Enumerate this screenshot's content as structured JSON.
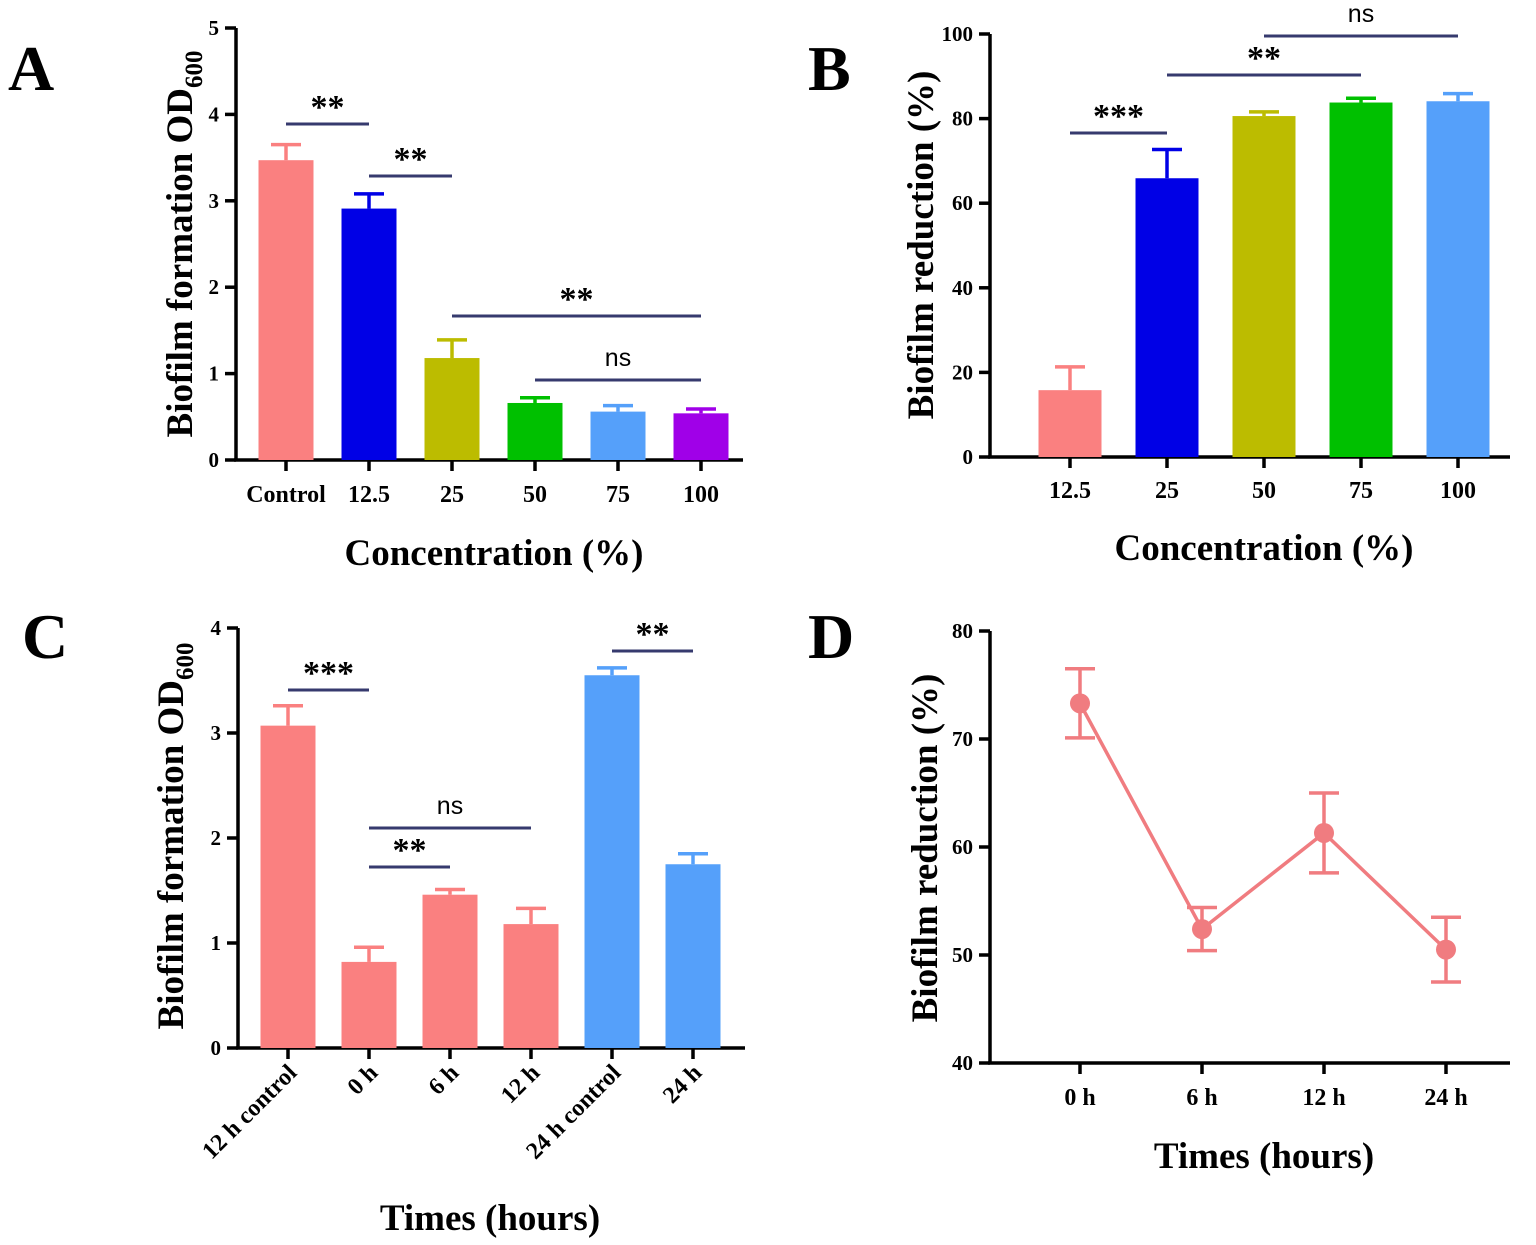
{
  "chart_data": [
    {
      "id": "A",
      "panel_label": "A",
      "type": "bar",
      "ylabel": "Biofilm formation OD",
      "ylabel_sub": "600",
      "xlabel": "Concentration (%)",
      "ylim": [
        0,
        5
      ],
      "yticks": [
        "0",
        "1",
        "2",
        "3",
        "4",
        "5"
      ],
      "categories": [
        "Control",
        "12.5",
        "25",
        "50",
        "75",
        "100"
      ],
      "values": [
        3.47,
        2.91,
        1.18,
        0.66,
        0.56,
        0.54
      ],
      "errors": [
        0.18,
        0.17,
        0.21,
        0.06,
        0.07,
        0.05
      ],
      "colors": [
        "#fa8080",
        "#0000e6",
        "#bcbc00",
        "#00c000",
        "#55a0fa",
        "#a000e8"
      ],
      "significance": [
        {
          "from": 0,
          "to": 1,
          "label": "**"
        },
        {
          "from": 1,
          "to": 2,
          "label": "**"
        },
        {
          "from": 2,
          "to": 5,
          "label": "**"
        },
        {
          "from": 3,
          "to": 5,
          "label": "ns"
        }
      ]
    },
    {
      "id": "B",
      "panel_label": "B",
      "type": "bar",
      "ylabel": "Biofilm reduction (%)",
      "xlabel": "Concentration (%)",
      "ylim": [
        0,
        100
      ],
      "yticks": [
        "0",
        "20",
        "40",
        "60",
        "80",
        "100"
      ],
      "categories": [
        "12.5",
        "25",
        "50",
        "75",
        "100"
      ],
      "values": [
        15.8,
        65.9,
        80.6,
        83.8,
        84.1
      ],
      "errors": [
        5.5,
        6.8,
        1.0,
        1.0,
        1.8
      ],
      "colors": [
        "#fa8080",
        "#0000e6",
        "#bcbc00",
        "#00c000",
        "#55a0fa"
      ],
      "significance": [
        {
          "from": 0,
          "to": 1,
          "label": "***"
        },
        {
          "from": 1,
          "to": 3,
          "label": "**"
        },
        {
          "from": 2,
          "to": 4,
          "label": "ns"
        }
      ]
    },
    {
      "id": "C",
      "panel_label": "C",
      "type": "bar",
      "ylabel": "Biofilm formation OD",
      "ylabel_sub": "600",
      "xlabel": "Times (hours)",
      "ylim": [
        0,
        4
      ],
      "yticks": [
        "0",
        "1",
        "2",
        "3",
        "4"
      ],
      "categories": [
        "12 h control",
        "0 h",
        "6 h",
        "12 h",
        "24 h control",
        "24 h"
      ],
      "values": [
        3.07,
        0.82,
        1.46,
        1.18,
        3.55,
        1.75
      ],
      "errors": [
        0.19,
        0.14,
        0.05,
        0.15,
        0.07,
        0.1
      ],
      "colors": [
        "#fa8080",
        "#fa8080",
        "#fa8080",
        "#fa8080",
        "#55a0fa",
        "#55a0fa"
      ],
      "significance": [
        {
          "from": 0,
          "to": 1,
          "label": "***"
        },
        {
          "from": 1,
          "to": 2,
          "label": "**"
        },
        {
          "from": 1,
          "to": 3,
          "label": "ns"
        },
        {
          "from": 4,
          "to": 5,
          "label": "**"
        }
      ]
    },
    {
      "id": "D",
      "panel_label": "D",
      "type": "line",
      "ylabel": "Biofilm reduction (%)",
      "xlabel": "Times (hours)",
      "ylim": [
        40,
        80
      ],
      "yticks": [
        "40",
        "50",
        "60",
        "70",
        "80"
      ],
      "categories": [
        "0 h",
        "6 h",
        "12 h",
        "24 h"
      ],
      "values": [
        73.3,
        52.4,
        61.3,
        50.5
      ],
      "errors": [
        3.2,
        2.0,
        3.7,
        3.0
      ],
      "color": "#f07c80"
    }
  ]
}
